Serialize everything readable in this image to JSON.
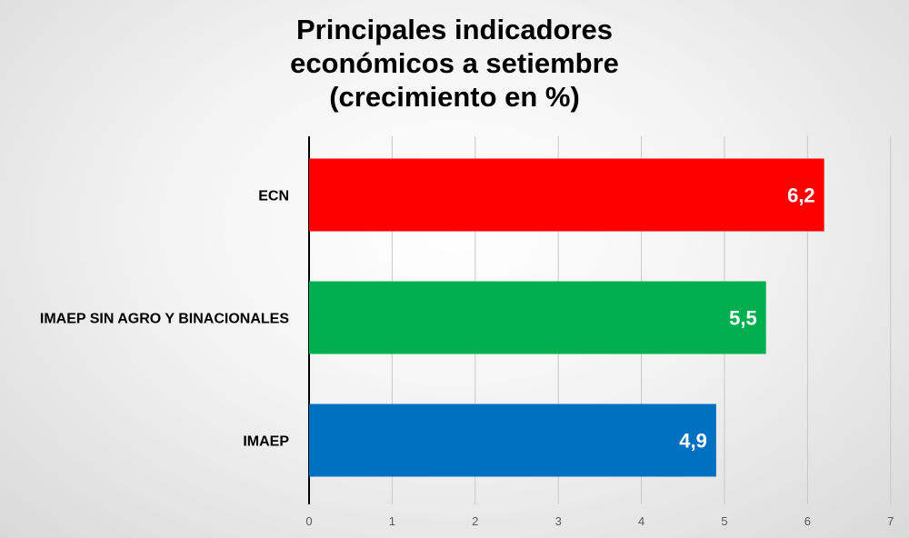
{
  "chart_data": {
    "type": "bar",
    "orientation": "horizontal",
    "title_lines": [
      "Principales indicadores",
      "económicos a setiembre",
      "(crecimiento en %)"
    ],
    "categories": [
      "ECN",
      "IMAEP SIN AGRO Y BINACIONALES",
      "IMAEP"
    ],
    "values": [
      6.2,
      5.5,
      4.9
    ],
    "value_labels": [
      "6,2",
      "5,5",
      "4,9"
    ],
    "colors": [
      "#ff0000",
      "#00b050",
      "#0070c0"
    ],
    "xlim": [
      0,
      7
    ],
    "xticks": [
      0,
      1,
      2,
      3,
      4,
      5,
      6,
      7
    ],
    "grid": true,
    "legend": "none"
  }
}
